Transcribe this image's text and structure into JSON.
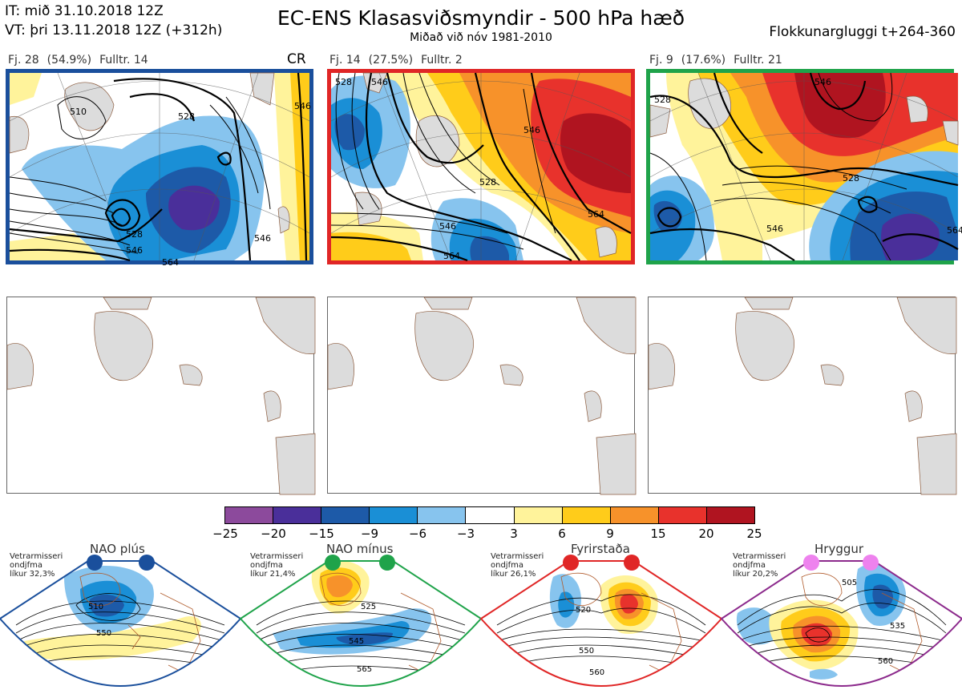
{
  "header": {
    "it_line": "IT: mið 31.10.2018 12Z",
    "vt_line": "VT: þri 13.11.2018 12Z  (+312h)",
    "title": "EC-ENS Klasasviðsmyndir - 500 hPa hæð",
    "subtitle": "Miðað við nóv 1981-2010",
    "window": "Flokkunargluggi t+264-360"
  },
  "clusters": [
    {
      "id": "1",
      "members": "Fj. 28",
      "percent": "(54.9%)",
      "representative": "Fulltr. 14",
      "tag": "CR",
      "frame_color": "#1a4f9c",
      "contour_labels": [
        "510",
        "528",
        "546",
        "564",
        "528",
        "546",
        "546"
      ]
    },
    {
      "id": "2",
      "members": "Fj. 14",
      "percent": "(27.5%)",
      "representative": "Fulltr. 2",
      "tag": "",
      "frame_color": "#e02626",
      "contour_labels": [
        "528",
        "546",
        "528",
        "546",
        "564",
        "564",
        "546"
      ]
    },
    {
      "id": "3",
      "members": "Fj. 9",
      "percent": "(17.6%)",
      "representative": "Fulltr. 21",
      "tag": "",
      "frame_color": "#1fa34a",
      "contour_labels": [
        "528",
        "546",
        "528",
        "546",
        "564"
      ]
    }
  ],
  "colorbar": {
    "colors": [
      "#8c4a9c",
      "#4a2f9a",
      "#1d5aa8",
      "#1a8fd6",
      "#87c4ee",
      "#ffffff",
      "#fff39b",
      "#ffcc1a",
      "#f7922a",
      "#e8322c",
      "#b01420"
    ],
    "ticks": [
      "−25",
      "−20",
      "−15",
      "−9",
      "−6",
      "−3",
      "3",
      "6",
      "9",
      "15",
      "20",
      "25"
    ]
  },
  "regimes": [
    {
      "name": "NAO plús",
      "note_line1": "Vetrarmisseri",
      "note_line2": "ondjfma",
      "note_line3": "líkur 32,3%",
      "dot_color": "#1a4f9c",
      "frame_color": "#1a4f9c",
      "contour_labels": [
        "510",
        "550"
      ]
    },
    {
      "name": "NAO mínus",
      "note_line1": "Vetrarmisseri",
      "note_line2": "ondjfma",
      "note_line3": "líkur 21,4%",
      "dot_color": "#1fa34a",
      "frame_color": "#1fa34a",
      "contour_labels": [
        "525",
        "545",
        "565"
      ]
    },
    {
      "name": "Fyrirstaða",
      "note_line1": "Vetrarmisseri",
      "note_line2": "ondjfma",
      "note_line3": "líkur 26,1%",
      "dot_color": "#e02626",
      "frame_color": "#e02626",
      "contour_labels": [
        "520",
        "550",
        "560"
      ]
    },
    {
      "name": "Hryggur",
      "note_line1": "Vetrarmisseri",
      "note_line2": "ondjfma",
      "note_line3": "líkur 20,2%",
      "dot_color": "#ee82ee",
      "frame_color": "#8c2a8c",
      "contour_labels": [
        "505",
        "535",
        "560"
      ]
    }
  ]
}
